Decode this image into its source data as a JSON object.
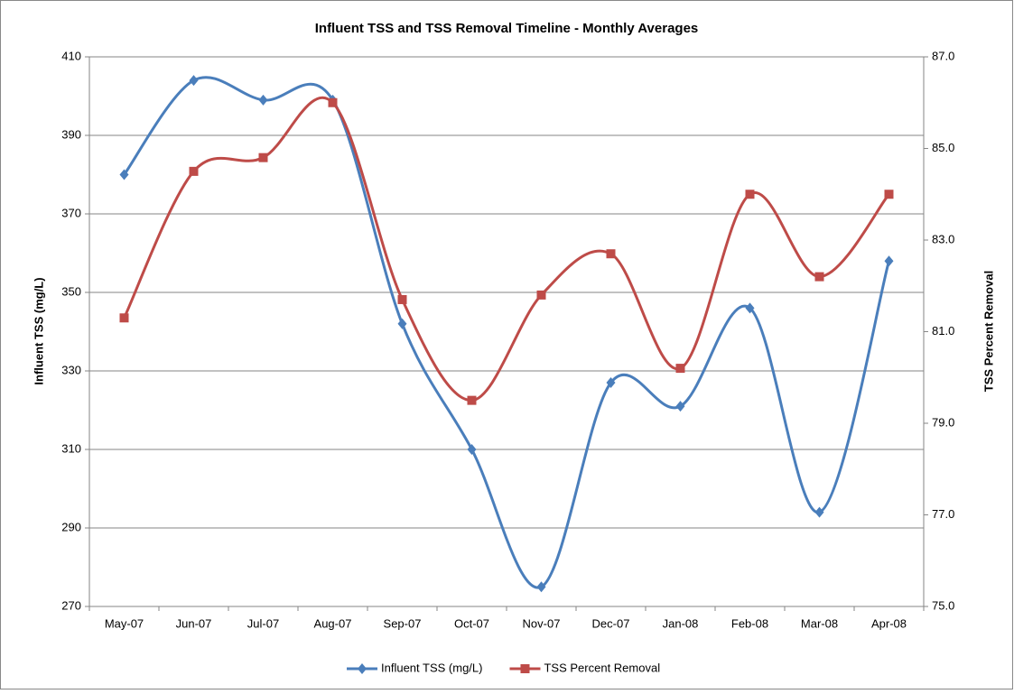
{
  "chart_data": {
    "type": "line",
    "title": "Influent TSS and TSS Removal Timeline - Monthly Averages",
    "y_label": "Influent TSS (mg/L)",
    "y2_label": "TSS Percent Removal",
    "categories": [
      "May-07",
      "Jun-07",
      "Jul-07",
      "Aug-07",
      "Sep-07",
      "Oct-07",
      "Nov-07",
      "Dec-07",
      "Jan-08",
      "Feb-08",
      "Mar-08",
      "Apr-08"
    ],
    "series": [
      {
        "name": "Influent TSS (mg/L)",
        "color": "#4a7ebb",
        "marker": "diamond",
        "values": [
          380,
          404,
          399,
          399,
          342,
          310,
          275,
          327,
          321,
          346,
          294,
          358
        ]
      },
      {
        "name": "TSS Percent Removal",
        "color": "#be4b48",
        "marker": "square",
        "axis": "y2",
        "values": [
          81.3,
          84.5,
          84.8,
          86.0,
          81.7,
          79.5,
          81.8,
          82.7,
          80.2,
          84.0,
          82.2,
          84.0
        ]
      }
    ],
    "ylim": [
      270,
      410
    ],
    "yticks": [
      270,
      290,
      310,
      330,
      350,
      370,
      390,
      410
    ],
    "y2lim": [
      75,
      87
    ],
    "y2ticks": [
      {
        "value": 75,
        "label": "75.0"
      },
      {
        "value": 77,
        "label": "77.0"
      },
      {
        "value": 79,
        "label": "79.0"
      },
      {
        "value": 81,
        "label": "81.0"
      },
      {
        "value": 83,
        "label": "83.0"
      },
      {
        "value": 85,
        "label": "85.0"
      },
      {
        "value": 87,
        "label": "87.0"
      }
    ],
    "grid": true,
    "smooth": true,
    "legend": "bottom"
  }
}
